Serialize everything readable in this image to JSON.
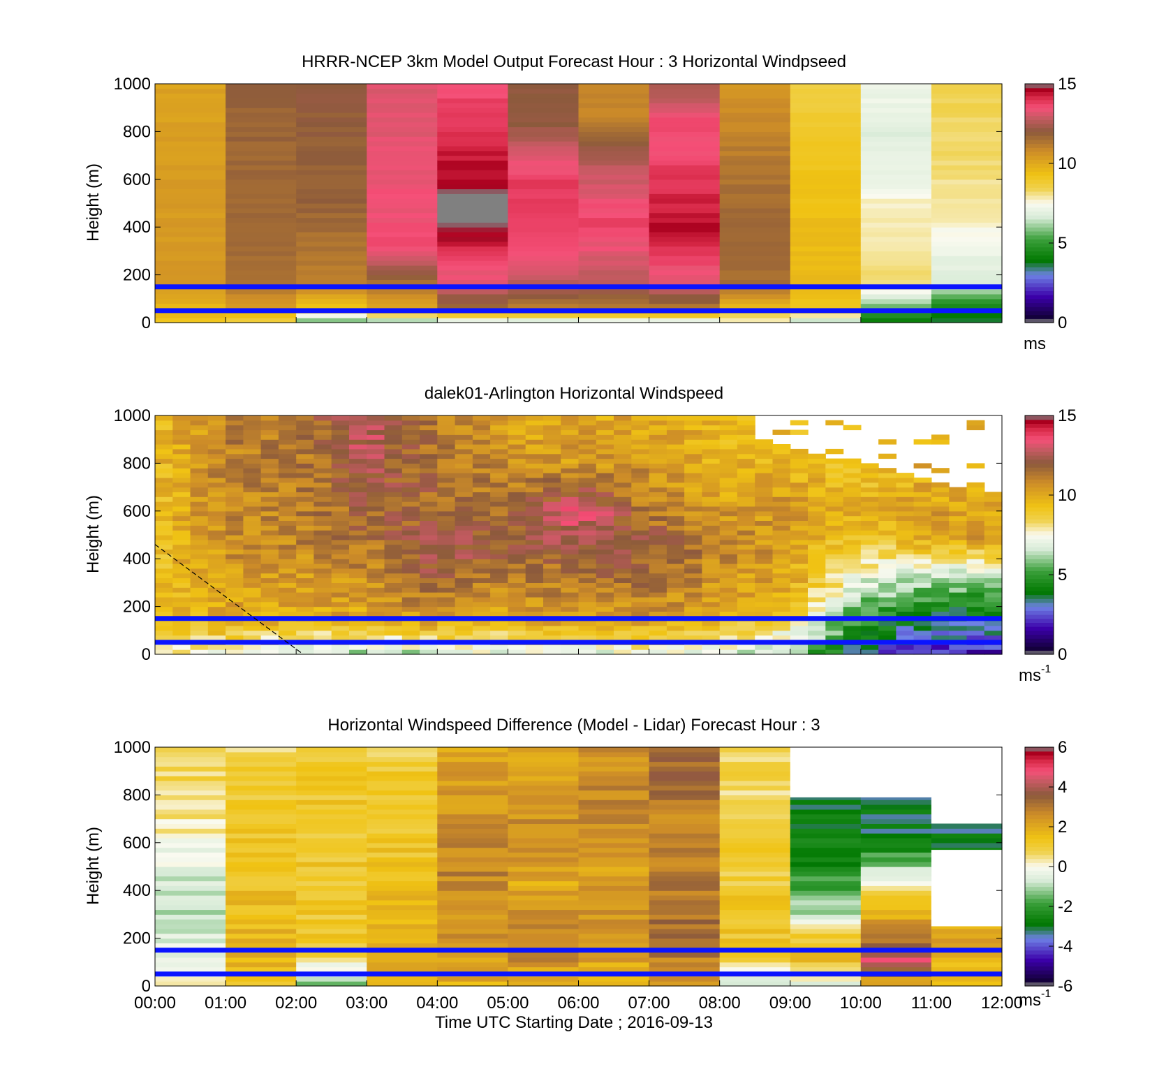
{
  "chart_data": [
    {
      "type": "heatmap",
      "title": "HRRR-NCEP 3km Model Output   Forecast Hour : 3 Horizontal Windpseed",
      "xlabel": "",
      "ylabel": "Height (m)",
      "xlim": [
        0,
        12
      ],
      "ylim": [
        0,
        1000
      ],
      "yticks": [
        "0",
        "200",
        "400",
        "600",
        "800",
        "1000"
      ],
      "colorbar": {
        "ticks": [
          "0",
          "5",
          "10",
          "15"
        ],
        "range": [
          0,
          15
        ],
        "unit": "ms",
        "unit_sup": ""
      },
      "reference_heights_m": [
        50,
        150
      ],
      "grid": false,
      "hour_columns": [
        {
          "hour": 0,
          "speeds": [
            [
              0,
              9.3
            ],
            [
              50,
              9.5
            ],
            [
              150,
              10.5
            ],
            [
              1000,
              10.2
            ]
          ]
        },
        {
          "hour": 1,
          "speeds": [
            [
              0,
              8.5
            ],
            [
              50,
              10
            ],
            [
              150,
              11.5
            ],
            [
              1000,
              11.8
            ]
          ]
        },
        {
          "hour": 2,
          "speeds": [
            [
              0,
              5
            ],
            [
              50,
              9
            ],
            [
              150,
              11
            ],
            [
              500,
              11.8
            ],
            [
              1000,
              12
            ]
          ]
        },
        {
          "hour": 3,
          "speeds": [
            [
              0,
              5.5
            ],
            [
              50,
              10
            ],
            [
              150,
              11.2
            ],
            [
              300,
              13.5
            ],
            [
              1000,
              13.2
            ]
          ]
        },
        {
          "hour": 4,
          "speeds": [
            [
              0,
              6
            ],
            [
              60,
              11.5
            ],
            [
              150,
              13
            ],
            [
              350,
              14.5
            ],
            [
              470,
              15.5
            ],
            [
              560,
              14.7
            ],
            [
              1000,
              13.5
            ]
          ]
        },
        {
          "hour": 5,
          "speeds": [
            [
              0,
              6
            ],
            [
              50,
              11
            ],
            [
              150,
              12.5
            ],
            [
              300,
              13.6
            ],
            [
              600,
              13.8
            ],
            [
              850,
              12
            ],
            [
              1000,
              12
            ]
          ]
        },
        {
          "hour": 6,
          "speeds": [
            [
              0,
              6
            ],
            [
              50,
              11
            ],
            [
              150,
              12.5
            ],
            [
              400,
              13.8
            ],
            [
              650,
              12.8
            ],
            [
              850,
              11
            ],
            [
              1000,
              11
            ]
          ]
        },
        {
          "hour": 7,
          "speeds": [
            [
              0,
              6
            ],
            [
              50,
              11
            ],
            [
              150,
              13
            ],
            [
              400,
              14.5
            ],
            [
              750,
              13.5
            ],
            [
              850,
              13.8
            ],
            [
              950,
              12.5
            ],
            [
              1000,
              12.5
            ]
          ]
        },
        {
          "hour": 8,
          "speeds": [
            [
              0,
              7.5
            ],
            [
              50,
              9
            ],
            [
              150,
              11.5
            ],
            [
              400,
              11.8
            ],
            [
              800,
              11
            ],
            [
              1000,
              10.5
            ]
          ]
        },
        {
          "hour": 9,
          "speeds": [
            [
              0,
              6
            ],
            [
              50,
              9
            ],
            [
              150,
              9.5
            ],
            [
              400,
              9.5
            ],
            [
              800,
              9
            ],
            [
              1000,
              8.5
            ]
          ]
        },
        {
          "hour": 10,
          "speeds": [
            [
              0,
              4
            ],
            [
              50,
              5
            ],
            [
              150,
              8.2
            ],
            [
              500,
              7.8
            ],
            [
              580,
              7.2
            ],
            [
              800,
              6.8
            ],
            [
              1000,
              7.3
            ]
          ]
        },
        {
          "hour": 11,
          "speeds": [
            [
              0,
              3.5
            ],
            [
              50,
              4
            ],
            [
              150,
              6.5
            ],
            [
              300,
              7.2
            ],
            [
              500,
              8
            ],
            [
              1000,
              8.5
            ]
          ]
        }
      ]
    },
    {
      "type": "heatmap",
      "title": "dalek01-Arlington  Horizontal Windspeed",
      "xlabel": "",
      "ylabel": "Height (m)",
      "xlim": [
        0,
        12
      ],
      "ylim": [
        0,
        1000
      ],
      "yticks": [
        "0",
        "200",
        "400",
        "600",
        "800",
        "1000"
      ],
      "colorbar": {
        "ticks": [
          "0",
          "5",
          "10",
          "15"
        ],
        "range": [
          0,
          15
        ],
        "unit": "ms",
        "unit_sup": "-1"
      },
      "reference_heights_m": [
        50,
        150
      ],
      "grid": false,
      "dashed_line_points": [
        [
          0,
          460
        ],
        [
          2.1,
          0
        ]
      ],
      "time_steps_per_hour": 4,
      "max_valid_height_by_hour": [
        [
          0,
          1000
        ],
        [
          8.5,
          1000
        ],
        [
          8.6,
          900
        ],
        [
          9,
          850
        ],
        [
          9.6,
          820
        ],
        [
          10,
          800
        ],
        [
          10.5,
          760
        ],
        [
          11,
          720
        ],
        [
          11.5,
          680
        ],
        [
          11.9,
          650
        ],
        [
          12,
          650
        ]
      ],
      "profile_by_hour": [
        {
          "hour": 0,
          "speeds": [
            [
              0,
              8
            ],
            [
              100,
              9
            ],
            [
              500,
              9.3
            ],
            [
              1000,
              9.5
            ]
          ]
        },
        {
          "hour": 1,
          "speeds": [
            [
              0,
              7.5
            ],
            [
              150,
              10
            ],
            [
              500,
              10.8
            ],
            [
              1000,
              11.2
            ]
          ]
        },
        {
          "hour": 2,
          "speeds": [
            [
              0,
              6.5
            ],
            [
              150,
              10
            ],
            [
              500,
              11
            ],
            [
              1000,
              11.2
            ]
          ]
        },
        {
          "hour": 3,
          "speeds": [
            [
              0,
              6
            ],
            [
              150,
              10
            ],
            [
              500,
              11.5
            ],
            [
              800,
              12.5
            ],
            [
              1000,
              13
            ]
          ]
        },
        {
          "hour": 4,
          "speeds": [
            [
              0,
              6.5
            ],
            [
              150,
              10.5
            ],
            [
              400,
              12.5
            ],
            [
              600,
              11.8
            ],
            [
              1000,
              11
            ]
          ]
        },
        {
          "hour": 5,
          "speeds": [
            [
              0,
              7
            ],
            [
              150,
              10
            ],
            [
              450,
              12
            ],
            [
              700,
              11
            ],
            [
              1000,
              10
            ]
          ]
        },
        {
          "hour": 6,
          "speeds": [
            [
              0,
              7
            ],
            [
              150,
              10.5
            ],
            [
              450,
              12
            ],
            [
              600,
              13.5
            ],
            [
              800,
              10.5
            ],
            [
              1000,
              10
            ]
          ]
        },
        {
          "hour": 7,
          "speeds": [
            [
              0,
              7
            ],
            [
              150,
              10.5
            ],
            [
              450,
              12.2
            ],
            [
              650,
              11
            ],
            [
              1000,
              10
            ]
          ]
        },
        {
          "hour": 8,
          "speeds": [
            [
              0,
              7
            ],
            [
              150,
              10
            ],
            [
              450,
              11
            ],
            [
              700,
              10
            ],
            [
              1000,
              9.5
            ]
          ]
        },
        {
          "hour": 9,
          "speeds": [
            [
              0,
              6
            ],
            [
              150,
              8.5
            ],
            [
              300,
              10
            ],
            [
              600,
              10.5
            ],
            [
              850,
              9.5
            ]
          ]
        },
        {
          "hour": 10,
          "speeds": [
            [
              0,
              3
            ],
            [
              150,
              5
            ],
            [
              300,
              7
            ],
            [
              600,
              10
            ],
            [
              800,
              9
            ]
          ]
        },
        {
          "hour": 11,
          "speeds": [
            [
              0,
              2
            ],
            [
              150,
              3.5
            ],
            [
              300,
              6
            ],
            [
              500,
              10.5
            ],
            [
              680,
              10
            ]
          ]
        },
        {
          "hour": 12,
          "speeds": [
            [
              0,
              2
            ],
            [
              150,
              3.5
            ],
            [
              300,
              6
            ],
            [
              500,
              10.5
            ],
            [
              650,
              10
            ]
          ]
        }
      ]
    },
    {
      "type": "heatmap",
      "title": "Horizontal Windspeed Difference (Model - Lidar) Forecast Hour : 3",
      "xlabel": "Time UTC  Starting Date ; 2016-09-13",
      "ylabel": "Height (m)",
      "xlim": [
        0,
        12
      ],
      "ylim": [
        0,
        1000
      ],
      "yticks": [
        "0",
        "200",
        "400",
        "600",
        "800",
        "1000"
      ],
      "xticks": [
        "00:00",
        "01:00",
        "02:00",
        "03:00",
        "04:00",
        "05:00",
        "06:00",
        "07:00",
        "08:00",
        "09:00",
        "10:00",
        "11:00",
        "12:00"
      ],
      "colorbar": {
        "ticks": [
          "-6",
          "-4",
          "-2",
          "0",
          "2",
          "4",
          "6"
        ],
        "range": [
          -6,
          6
        ],
        "unit": "ms",
        "unit_sup": "-1"
      },
      "reference_heights_m": [
        50,
        150
      ],
      "grid": false,
      "hour_columns": [
        {
          "hour": 0,
          "top_m": 1000,
          "speeds": [
            [
              0,
              0.3
            ],
            [
              150,
              -0.5
            ],
            [
              300,
              -1
            ],
            [
              500,
              -0.5
            ],
            [
              700,
              0.5
            ],
            [
              1000,
              1
            ]
          ]
        },
        {
          "hour": 1,
          "top_m": 1000,
          "speeds": [
            [
              0,
              1.5
            ],
            [
              150,
              1.8
            ],
            [
              600,
              1.2
            ],
            [
              1000,
              0.8
            ]
          ]
        },
        {
          "hour": 2,
          "top_m": 1000,
          "speeds": [
            [
              0,
              -1.5
            ],
            [
              150,
              1.2
            ],
            [
              1000,
              1.2
            ]
          ]
        },
        {
          "hour": 3,
          "top_m": 1000,
          "speeds": [
            [
              0,
              1.5
            ],
            [
              150,
              2.2
            ],
            [
              500,
              1.3
            ],
            [
              1000,
              1
            ]
          ]
        },
        {
          "hour": 4,
          "top_m": 1000,
          "speeds": [
            [
              0,
              1.8
            ],
            [
              150,
              2.5
            ],
            [
              500,
              2.8
            ],
            [
              1000,
              2
            ]
          ]
        },
        {
          "hour": 5,
          "top_m": 1000,
          "speeds": [
            [
              0,
              1.5
            ],
            [
              150,
              3
            ],
            [
              400,
              2
            ],
            [
              700,
              2.5
            ],
            [
              1000,
              2.2
            ]
          ]
        },
        {
          "hour": 6,
          "top_m": 1000,
          "speeds": [
            [
              0,
              1.5
            ],
            [
              150,
              2.5
            ],
            [
              500,
              2.2
            ],
            [
              800,
              2.8
            ],
            [
              1000,
              2.5
            ]
          ]
        },
        {
          "hour": 7,
          "top_m": 1000,
          "speeds": [
            [
              0,
              2
            ],
            [
              150,
              3.2
            ],
            [
              700,
              2.8
            ],
            [
              1000,
              3.5
            ]
          ]
        },
        {
          "hour": 8,
          "top_m": 1000,
          "speeds": [
            [
              0,
              -1
            ],
            [
              150,
              1.3
            ],
            [
              600,
              1
            ],
            [
              1000,
              0.5
            ]
          ]
        },
        {
          "hour": 9,
          "top_m": 790,
          "speeds": [
            [
              0,
              -0.5
            ],
            [
              150,
              2
            ],
            [
              300,
              -0.8
            ],
            [
              500,
              -2.5
            ],
            [
              790,
              -3
            ]
          ]
        },
        {
          "hour": 10,
          "top_m": 790,
          "speeds": [
            [
              0,
              1.5
            ],
            [
              100,
              4.5
            ],
            [
              200,
              3
            ],
            [
              400,
              1
            ],
            [
              600,
              -3
            ],
            [
              790,
              -3
            ]
          ]
        },
        {
          "hour": 11,
          "top_m": 680,
          "speeds": [
            [
              0,
              1.5
            ],
            [
              150,
              2
            ],
            [
              250,
              2
            ],
            [
              550,
              -3
            ],
            [
              680,
              -3
            ]
          ]
        }
      ],
      "missing_regions": [
        {
          "x": [
            9,
            12
          ],
          "y": [
            790,
            1000
          ]
        },
        {
          "x": [
            11,
            12
          ],
          "y": [
            250,
            570
          ]
        },
        {
          "x": [
            11,
            12
          ],
          "y": [
            680,
            790
          ]
        }
      ]
    }
  ]
}
